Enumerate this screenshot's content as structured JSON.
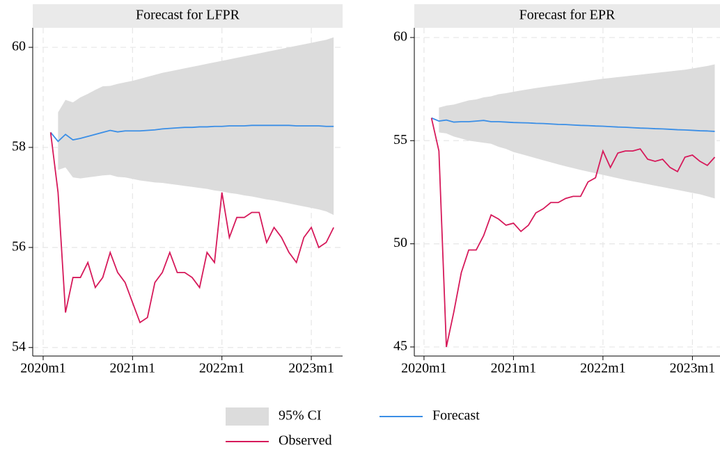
{
  "chart_data": [
    {
      "type": "line",
      "title": "Forecast for LFPR",
      "x": [
        721,
        722,
        723,
        724,
        725,
        726,
        727,
        728,
        729,
        730,
        731,
        732,
        733,
        734,
        735,
        736,
        737,
        738,
        739,
        740,
        741,
        742,
        743,
        744,
        745,
        746,
        747,
        748,
        749,
        750,
        751,
        752,
        753,
        754,
        755,
        756,
        757,
        758,
        759
      ],
      "xlim": [
        718.6,
        760.2
      ],
      "ylim": [
        53.83,
        60.39
      ],
      "xticks": [
        {
          "value": 720,
          "label": "2020m1"
        },
        {
          "value": 732,
          "label": "2021m1"
        },
        {
          "value": 744,
          "label": "2022m1"
        },
        {
          "value": 756,
          "label": "2023m1"
        }
      ],
      "yticks": [
        54,
        56,
        58,
        60
      ],
      "grid": true,
      "series": [
        {
          "name": "95% CI",
          "color": "#dcdcdc",
          "upper": [
            null,
            58.7,
            58.95,
            58.9,
            59.0,
            59.07,
            59.15,
            59.22,
            59.23,
            59.27,
            59.3,
            59.33,
            59.37,
            59.41,
            59.45,
            59.49,
            59.52,
            59.55,
            59.58,
            59.61,
            59.64,
            59.67,
            59.7,
            59.73,
            59.76,
            59.79,
            59.82,
            59.85,
            59.88,
            59.91,
            59.94,
            59.97,
            60.0,
            60.03,
            60.06,
            60.09,
            60.12,
            60.15,
            60.2
          ],
          "lower": [
            null,
            57.55,
            57.6,
            57.4,
            57.38,
            57.4,
            57.42,
            57.44,
            57.45,
            57.41,
            57.4,
            57.37,
            57.34,
            57.32,
            57.3,
            57.29,
            57.27,
            57.25,
            57.23,
            57.21,
            57.19,
            57.17,
            57.14,
            57.12,
            57.09,
            57.07,
            57.04,
            57.02,
            56.99,
            56.96,
            56.94,
            56.91,
            56.88,
            56.85,
            56.82,
            56.79,
            56.76,
            56.72,
            56.65
          ]
        },
        {
          "name": "Forecast",
          "color": "#3a8ee6",
          "values": [
            58.3,
            58.12,
            58.26,
            58.15,
            58.18,
            58.22,
            58.26,
            58.3,
            58.34,
            58.31,
            58.33,
            58.33,
            58.33,
            58.34,
            58.35,
            58.37,
            58.38,
            58.39,
            58.4,
            58.4,
            58.41,
            58.41,
            58.42,
            58.42,
            58.43,
            58.43,
            58.43,
            58.44,
            58.44,
            58.44,
            58.44,
            58.44,
            58.44,
            58.43,
            58.43,
            58.43,
            58.43,
            58.42,
            58.42
          ]
        },
        {
          "name": "Observed",
          "color": "#d6195a",
          "values": [
            58.3,
            57.1,
            54.7,
            55.4,
            55.4,
            55.7,
            55.2,
            55.4,
            55.9,
            55.5,
            55.3,
            54.9,
            54.5,
            54.6,
            55.3,
            55.5,
            55.9,
            55.5,
            55.5,
            55.4,
            55.2,
            55.9,
            55.7,
            57.1,
            56.2,
            56.6,
            56.6,
            56.7,
            56.7,
            56.1,
            56.4,
            56.2,
            55.9,
            55.7,
            56.2,
            56.4,
            56.0,
            56.1,
            56.4
          ]
        }
      ]
    },
    {
      "type": "line",
      "title": "Forecast for EPR",
      "x": [
        721,
        722,
        723,
        724,
        725,
        726,
        727,
        728,
        729,
        730,
        731,
        732,
        733,
        734,
        735,
        736,
        737,
        738,
        739,
        740,
        741,
        742,
        743,
        744,
        745,
        746,
        747,
        748,
        749,
        750,
        751,
        752,
        753,
        754,
        755,
        756,
        757,
        758,
        759
      ],
      "xlim": [
        718.7,
        759.7
      ],
      "ylim": [
        44.56,
        60.47
      ],
      "xticks": [
        {
          "value": 720,
          "label": "2020m1"
        },
        {
          "value": 732,
          "label": "2021m1"
        },
        {
          "value": 744,
          "label": "2022m1"
        },
        {
          "value": 756,
          "label": "2023m1"
        }
      ],
      "yticks": [
        45,
        50,
        55,
        60
      ],
      "grid": true,
      "series": [
        {
          "name": "95% CI",
          "color": "#dcdcdc",
          "upper": [
            null,
            56.6,
            56.7,
            56.75,
            56.85,
            56.95,
            57.0,
            57.1,
            57.15,
            57.25,
            57.3,
            57.37,
            57.43,
            57.49,
            57.55,
            57.6,
            57.65,
            57.7,
            57.75,
            57.8,
            57.85,
            57.9,
            57.95,
            58.0,
            58.04,
            58.08,
            58.12,
            58.16,
            58.2,
            58.24,
            58.28,
            58.32,
            58.36,
            58.4,
            58.44,
            58.5,
            58.56,
            58.62,
            58.7
          ],
          "lower": [
            null,
            55.4,
            55.35,
            55.2,
            55.1,
            55.0,
            54.95,
            54.9,
            54.85,
            54.7,
            54.6,
            54.45,
            54.35,
            54.25,
            54.15,
            54.05,
            53.95,
            53.85,
            53.76,
            53.67,
            53.58,
            53.5,
            53.42,
            53.34,
            53.26,
            53.18,
            53.1,
            53.03,
            52.96,
            52.89,
            52.82,
            52.75,
            52.68,
            52.61,
            52.54,
            52.47,
            52.4,
            52.3,
            52.2
          ]
        },
        {
          "name": "Forecast",
          "color": "#3a8ee6",
          "values": [
            56.1,
            55.95,
            56.0,
            55.9,
            55.92,
            55.92,
            55.95,
            55.98,
            55.92,
            55.92,
            55.9,
            55.88,
            55.87,
            55.86,
            55.84,
            55.83,
            55.81,
            55.79,
            55.78,
            55.76,
            55.74,
            55.73,
            55.71,
            55.7,
            55.68,
            55.66,
            55.65,
            55.63,
            55.61,
            55.6,
            55.58,
            55.57,
            55.55,
            55.53,
            55.52,
            55.5,
            55.48,
            55.47,
            55.45
          ]
        },
        {
          "name": "Observed",
          "color": "#d6195a",
          "values": [
            56.1,
            54.5,
            45.0,
            46.7,
            48.6,
            49.7,
            49.7,
            50.4,
            51.4,
            51.2,
            50.9,
            51.0,
            50.6,
            50.9,
            51.5,
            51.7,
            52.0,
            52.0,
            52.2,
            52.3,
            52.3,
            53.0,
            53.2,
            54.5,
            53.7,
            54.4,
            54.5,
            54.5,
            54.6,
            54.1,
            54.0,
            54.1,
            53.7,
            53.5,
            54.2,
            54.3,
            54.0,
            53.8,
            54.2
          ]
        }
      ]
    }
  ]
}
